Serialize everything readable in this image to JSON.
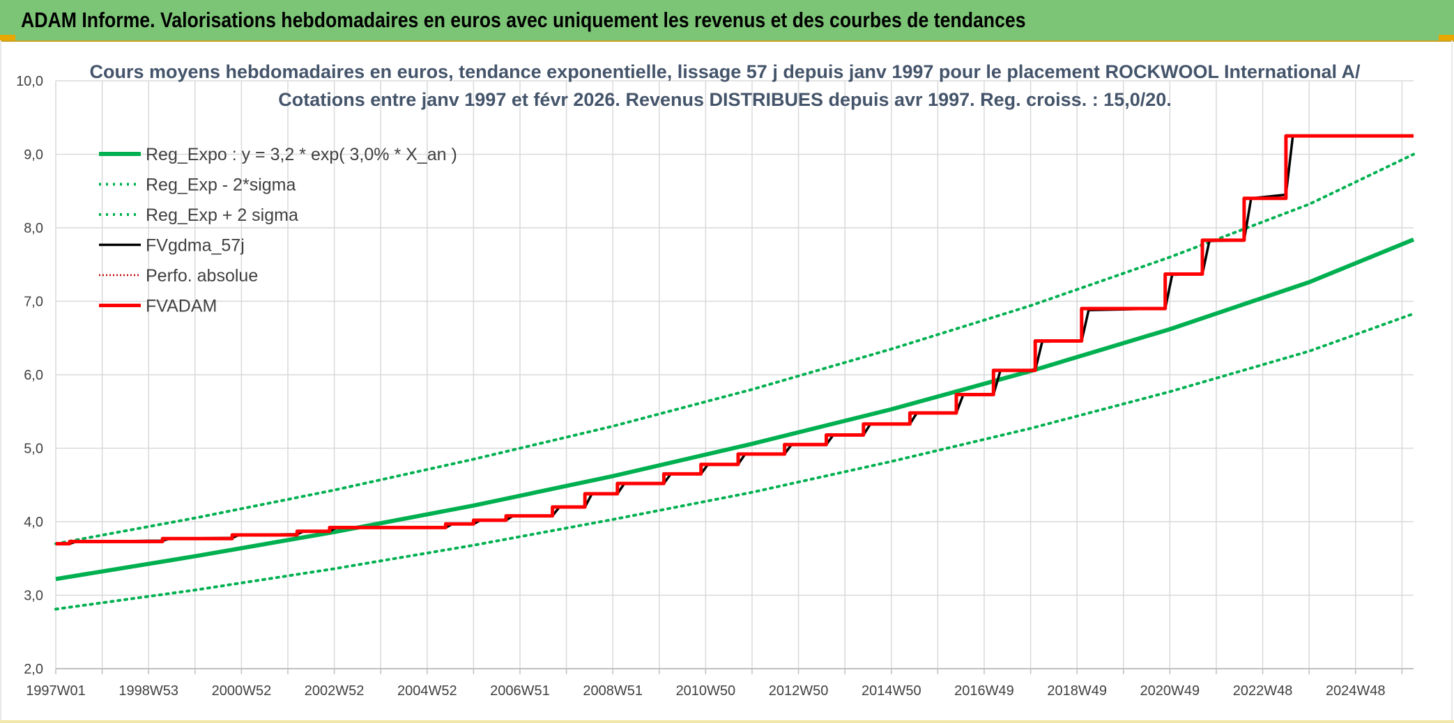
{
  "banner": {
    "title": "ADAM Informe. Valorisations hebdomadaires en euros avec uniquement les revenus et des courbes de tendances"
  },
  "colors": {
    "banner_bg": "#7cc576",
    "reg_expo": "#00b050",
    "fvgdma": "#000000",
    "fvadam": "#ff0000",
    "perfo": "#c00000",
    "grid": "#d9d9d9"
  },
  "chart_data": {
    "type": "line",
    "title_lines": [
      "Cours moyens hebdomadaires en euros, tendance exponentielle, lissage 57 j depuis janv 1997 pour le placement ROCKWOOL International A/",
      "Cotations entre janv 1997 et févr 2026. Revenus DISTRIBUES depuis avr 1997. Reg. croiss. : 15,0/20."
    ],
    "y_axis": {
      "min": 2.0,
      "max": 10.0,
      "step": 1.0,
      "tick_labels": [
        "2,0",
        "3,0",
        "4,0",
        "5,0",
        "6,0",
        "7,0",
        "8,0",
        "9,0",
        "10,0"
      ]
    },
    "x_axis": {
      "start_year": 1997.0,
      "end_year": 2026.25,
      "tick_labels": [
        "1997W01",
        "1998W53",
        "2000W52",
        "2002W52",
        "2004W52",
        "2006W51",
        "2008W51",
        "2010W50",
        "2012W50",
        "2014W50",
        "2016W49",
        "2018W49",
        "2020W49",
        "2022W48",
        "2024W48"
      ],
      "tick_years": [
        1997.0,
        1999.0,
        2001.0,
        2003.0,
        2005.0,
        2007.0,
        2009.0,
        2011.0,
        2013.0,
        2015.0,
        2017.0,
        2019.0,
        2021.0,
        2023.0,
        2025.0
      ]
    },
    "grid": true,
    "legend_position": "top-left",
    "series": [
      {
        "name": "Reg_Expo : y = 3,2 * exp( 3,0% *  X_an )",
        "style": "solid-thick",
        "color": "#00b050",
        "points": [
          [
            1997.0,
            3.22
          ],
          [
            2000.0,
            3.53
          ],
          [
            2003.0,
            3.86
          ],
          [
            2006.0,
            4.22
          ],
          [
            2009.0,
            4.62
          ],
          [
            2012.0,
            5.06
          ],
          [
            2015.0,
            5.53
          ],
          [
            2018.0,
            6.05
          ],
          [
            2021.0,
            6.62
          ],
          [
            2024.0,
            7.26
          ],
          [
            2026.25,
            7.84
          ]
        ]
      },
      {
        "name": "Reg_Exp - 2*sigma",
        "style": "dotted",
        "color": "#00b050",
        "points": [
          [
            1997.0,
            2.81
          ],
          [
            2000.0,
            3.07
          ],
          [
            2003.0,
            3.36
          ],
          [
            2006.0,
            3.68
          ],
          [
            2009.0,
            4.03
          ],
          [
            2012.0,
            4.4
          ],
          [
            2015.0,
            4.82
          ],
          [
            2018.0,
            5.27
          ],
          [
            2021.0,
            5.77
          ],
          [
            2024.0,
            6.32
          ],
          [
            2026.25,
            6.83
          ]
        ]
      },
      {
        "name": "Reg_Exp + 2 sigma",
        "style": "dotted",
        "color": "#00b050",
        "points": [
          [
            1997.0,
            3.7
          ],
          [
            2000.0,
            4.05
          ],
          [
            2003.0,
            4.43
          ],
          [
            2006.0,
            4.85
          ],
          [
            2009.0,
            5.3
          ],
          [
            2012.0,
            5.8
          ],
          [
            2015.0,
            6.35
          ],
          [
            2018.0,
            6.94
          ],
          [
            2021.0,
            7.6
          ],
          [
            2024.0,
            8.32
          ],
          [
            2026.25,
            9.0
          ]
        ]
      },
      {
        "name": "FVgdma_57j",
        "style": "solid",
        "color": "#000000",
        "points": [
          [
            1997.0,
            3.7
          ],
          [
            1997.3,
            3.7
          ],
          [
            1997.45,
            3.73
          ],
          [
            1998.0,
            3.73
          ],
          [
            1999.0,
            3.74
          ],
          [
            1999.3,
            3.74
          ],
          [
            1999.45,
            3.77
          ],
          [
            2000.8,
            3.78
          ],
          [
            2000.95,
            3.82
          ],
          [
            2002.2,
            3.83
          ],
          [
            2002.35,
            3.87
          ],
          [
            2002.9,
            3.87
          ],
          [
            2003.05,
            3.92
          ],
          [
            2005.4,
            3.92
          ],
          [
            2005.55,
            3.97
          ],
          [
            2006.0,
            3.97
          ],
          [
            2006.15,
            4.02
          ],
          [
            2006.7,
            4.02
          ],
          [
            2006.85,
            4.08
          ],
          [
            2007.7,
            4.08
          ],
          [
            2007.85,
            4.2
          ],
          [
            2008.4,
            4.2
          ],
          [
            2008.55,
            4.38
          ],
          [
            2009.1,
            4.38
          ],
          [
            2009.25,
            4.52
          ],
          [
            2010.1,
            4.52
          ],
          [
            2010.25,
            4.65
          ],
          [
            2010.9,
            4.65
          ],
          [
            2011.05,
            4.78
          ],
          [
            2011.7,
            4.78
          ],
          [
            2011.85,
            4.92
          ],
          [
            2012.7,
            4.92
          ],
          [
            2012.85,
            5.05
          ],
          [
            2013.6,
            5.05
          ],
          [
            2013.75,
            5.18
          ],
          [
            2014.4,
            5.18
          ],
          [
            2014.55,
            5.33
          ],
          [
            2015.4,
            5.33
          ],
          [
            2015.55,
            5.48
          ],
          [
            2016.4,
            5.48
          ],
          [
            2016.55,
            5.73
          ],
          [
            2017.2,
            5.73
          ],
          [
            2017.35,
            6.06
          ],
          [
            2018.1,
            6.06
          ],
          [
            2018.25,
            6.45
          ],
          [
            2019.1,
            6.46
          ],
          [
            2019.25,
            6.88
          ],
          [
            2020.9,
            6.9
          ],
          [
            2021.05,
            7.36
          ],
          [
            2021.7,
            7.37
          ],
          [
            2021.85,
            7.82
          ],
          [
            2022.6,
            7.83
          ],
          [
            2022.75,
            8.4
          ],
          [
            2023.5,
            8.45
          ],
          [
            2023.65,
            9.25
          ],
          [
            2024.2,
            9.25
          ],
          [
            2026.25,
            9.25
          ]
        ]
      },
      {
        "name": "Perfo. absolue",
        "style": "dotted",
        "color": "#c00000",
        "points": []
      },
      {
        "name": "FVADAM",
        "style": "step-thick",
        "color": "#ff0000",
        "points": [
          [
            1997.0,
            3.7
          ],
          [
            1997.3,
            3.7
          ],
          [
            1997.3,
            3.73
          ],
          [
            1999.3,
            3.73
          ],
          [
            1999.3,
            3.77
          ],
          [
            2000.8,
            3.77
          ],
          [
            2000.8,
            3.82
          ],
          [
            2002.2,
            3.82
          ],
          [
            2002.2,
            3.87
          ],
          [
            2002.9,
            3.87
          ],
          [
            2002.9,
            3.92
          ],
          [
            2005.4,
            3.92
          ],
          [
            2005.4,
            3.97
          ],
          [
            2006.0,
            3.97
          ],
          [
            2006.0,
            4.02
          ],
          [
            2006.7,
            4.02
          ],
          [
            2006.7,
            4.08
          ],
          [
            2007.7,
            4.08
          ],
          [
            2007.7,
            4.2
          ],
          [
            2008.4,
            4.2
          ],
          [
            2008.4,
            4.38
          ],
          [
            2009.1,
            4.38
          ],
          [
            2009.1,
            4.52
          ],
          [
            2010.1,
            4.52
          ],
          [
            2010.1,
            4.65
          ],
          [
            2010.9,
            4.65
          ],
          [
            2010.9,
            4.78
          ],
          [
            2011.7,
            4.78
          ],
          [
            2011.7,
            4.92
          ],
          [
            2012.7,
            4.92
          ],
          [
            2012.7,
            5.05
          ],
          [
            2013.6,
            5.05
          ],
          [
            2013.6,
            5.18
          ],
          [
            2014.4,
            5.18
          ],
          [
            2014.4,
            5.33
          ],
          [
            2015.4,
            5.33
          ],
          [
            2015.4,
            5.48
          ],
          [
            2016.4,
            5.48
          ],
          [
            2016.4,
            5.73
          ],
          [
            2017.2,
            5.73
          ],
          [
            2017.2,
            6.06
          ],
          [
            2018.1,
            6.06
          ],
          [
            2018.1,
            6.46
          ],
          [
            2019.1,
            6.46
          ],
          [
            2019.1,
            6.9
          ],
          [
            2020.9,
            6.9
          ],
          [
            2020.9,
            7.37
          ],
          [
            2021.7,
            7.37
          ],
          [
            2021.7,
            7.83
          ],
          [
            2022.6,
            7.83
          ],
          [
            2022.6,
            8.4
          ],
          [
            2023.5,
            8.4
          ],
          [
            2023.5,
            9.25
          ],
          [
            2026.25,
            9.25
          ]
        ]
      }
    ]
  }
}
